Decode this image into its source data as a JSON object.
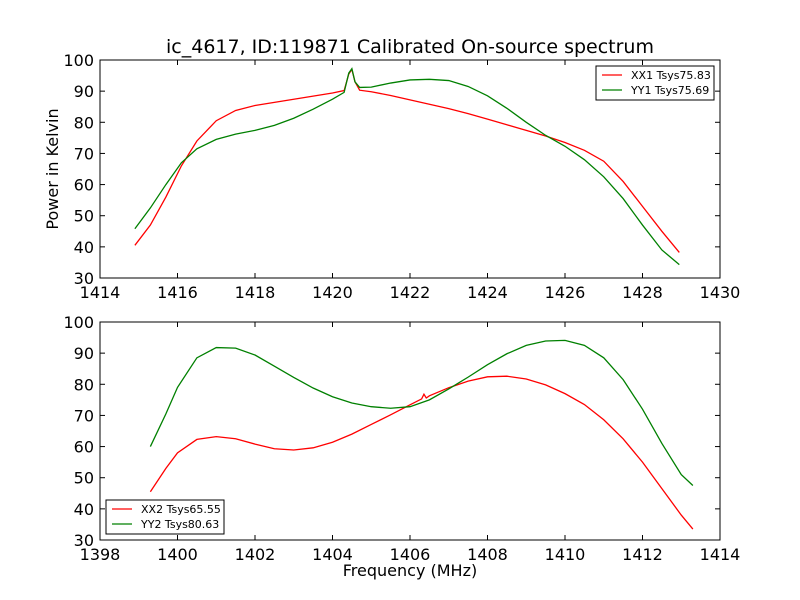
{
  "chart_data": [
    {
      "type": "line",
      "title": "ic_4617, ID:119871 Calibrated On-source spectrum",
      "xlabel": "",
      "ylabel": "Power in Kelvin",
      "xlim": [
        1414,
        1430
      ],
      "ylim": [
        30,
        100
      ],
      "xticks": [
        1414,
        1416,
        1418,
        1420,
        1422,
        1424,
        1426,
        1428,
        1430
      ],
      "yticks": [
        30,
        40,
        50,
        60,
        70,
        80,
        90,
        100
      ],
      "legend_position": "top-right",
      "series": [
        {
          "name": "XX1 Tsys75.83",
          "color": "#ff0000",
          "points": [
            [
              1414.9,
              40.5
            ],
            [
              1415.3,
              47
            ],
            [
              1415.7,
              56
            ],
            [
              1416.1,
              66
            ],
            [
              1416.5,
              74
            ],
            [
              1417.0,
              80.5
            ],
            [
              1417.5,
              83.8
            ],
            [
              1418.0,
              85.4
            ],
            [
              1418.5,
              86.4
            ],
            [
              1419.0,
              87.4
            ],
            [
              1419.5,
              88.4
            ],
            [
              1420.0,
              89.4
            ],
            [
              1420.3,
              90.2
            ],
            [
              1420.42,
              95.5
            ],
            [
              1420.5,
              97
            ],
            [
              1420.58,
              93
            ],
            [
              1420.7,
              90.3
            ],
            [
              1421.0,
              89.8
            ],
            [
              1421.5,
              88.6
            ],
            [
              1422.0,
              87.2
            ],
            [
              1422.5,
              85.8
            ],
            [
              1423.0,
              84.4
            ],
            [
              1423.5,
              82.8
            ],
            [
              1424.0,
              81.0
            ],
            [
              1424.5,
              79.2
            ],
            [
              1425.0,
              77.4
            ],
            [
              1425.5,
              75.6
            ],
            [
              1426.0,
              73.5
            ],
            [
              1426.5,
              71.0
            ],
            [
              1427.0,
              67.5
            ],
            [
              1427.5,
              61
            ],
            [
              1428.0,
              53
            ],
            [
              1428.5,
              45
            ],
            [
              1428.95,
              38.2
            ]
          ]
        },
        {
          "name": "YY1 Tsys75.69",
          "color": "#008000",
          "points": [
            [
              1414.9,
              45.8
            ],
            [
              1415.3,
              52.5
            ],
            [
              1415.7,
              60
            ],
            [
              1416.1,
              67
            ],
            [
              1416.5,
              71.5
            ],
            [
              1417.0,
              74.5
            ],
            [
              1417.5,
              76.2
            ],
            [
              1418.0,
              77.4
            ],
            [
              1418.5,
              79
            ],
            [
              1419.0,
              81.3
            ],
            [
              1419.5,
              84.2
            ],
            [
              1420.0,
              87.4
            ],
            [
              1420.3,
              89.6
            ],
            [
              1420.42,
              95.8
            ],
            [
              1420.5,
              97.2
            ],
            [
              1420.58,
              93
            ],
            [
              1420.7,
              91.2
            ],
            [
              1421.0,
              91.3
            ],
            [
              1421.5,
              92.6
            ],
            [
              1422.0,
              93.6
            ],
            [
              1422.5,
              93.8
            ],
            [
              1423.0,
              93.4
            ],
            [
              1423.5,
              91.5
            ],
            [
              1424.0,
              88.5
            ],
            [
              1424.5,
              84.5
            ],
            [
              1425.0,
              80
            ],
            [
              1425.5,
              75.8
            ],
            [
              1426.0,
              72.3
            ],
            [
              1426.5,
              68
            ],
            [
              1427.0,
              62.5
            ],
            [
              1427.5,
              55.5
            ],
            [
              1428.0,
              47
            ],
            [
              1428.5,
              39
            ],
            [
              1428.95,
              34.3
            ]
          ]
        }
      ]
    },
    {
      "type": "line",
      "title": "",
      "xlabel": "Frequency (MHz)",
      "ylabel": "",
      "xlim": [
        1398,
        1414
      ],
      "ylim": [
        30,
        100
      ],
      "xticks": [
        1398,
        1400,
        1402,
        1404,
        1406,
        1408,
        1410,
        1412,
        1414
      ],
      "yticks": [
        30,
        40,
        50,
        60,
        70,
        80,
        90,
        100
      ],
      "legend_position": "bottom-left",
      "series": [
        {
          "name": "XX2 Tsys65.55",
          "color": "#ff0000",
          "points": [
            [
              1399.3,
              45.5
            ],
            [
              1399.7,
              53
            ],
            [
              1400.0,
              58
            ],
            [
              1400.5,
              62.3
            ],
            [
              1401.0,
              63.2
            ],
            [
              1401.5,
              62.5
            ],
            [
              1402.0,
              60.8
            ],
            [
              1402.5,
              59.3
            ],
            [
              1403.0,
              58.9
            ],
            [
              1403.5,
              59.6
            ],
            [
              1404.0,
              61.4
            ],
            [
              1404.5,
              64
            ],
            [
              1405.0,
              67.1
            ],
            [
              1405.5,
              70.2
            ],
            [
              1406.0,
              73.4
            ],
            [
              1406.3,
              75.3
            ],
            [
              1406.36,
              76.8
            ],
            [
              1406.42,
              75.6
            ],
            [
              1406.5,
              76.3
            ],
            [
              1407.0,
              78.9
            ],
            [
              1407.5,
              81
            ],
            [
              1408.0,
              82.4
            ],
            [
              1408.5,
              82.6
            ],
            [
              1409.0,
              81.7
            ],
            [
              1409.5,
              79.8
            ],
            [
              1410.0,
              77
            ],
            [
              1410.5,
              73.5
            ],
            [
              1411.0,
              68.6
            ],
            [
              1411.5,
              62.5
            ],
            [
              1412.0,
              55
            ],
            [
              1412.5,
              46.5
            ],
            [
              1413.0,
              38
            ],
            [
              1413.3,
              33.5
            ]
          ]
        },
        {
          "name": "YY2 Tsys80.63",
          "color": "#008000",
          "points": [
            [
              1399.3,
              60
            ],
            [
              1399.7,
              70.5
            ],
            [
              1400.0,
              79
            ],
            [
              1400.5,
              88.5
            ],
            [
              1401.0,
              91.8
            ],
            [
              1401.5,
              91.6
            ],
            [
              1402.0,
              89.4
            ],
            [
              1402.5,
              85.8
            ],
            [
              1403.0,
              82.2
            ],
            [
              1403.5,
              78.8
            ],
            [
              1404.0,
              76
            ],
            [
              1404.5,
              74
            ],
            [
              1405.0,
              72.8
            ],
            [
              1405.5,
              72.3
            ],
            [
              1406.0,
              72.8
            ],
            [
              1406.5,
              75
            ],
            [
              1407.0,
              78.5
            ],
            [
              1407.5,
              82.3
            ],
            [
              1408.0,
              86.3
            ],
            [
              1408.5,
              89.8
            ],
            [
              1409.0,
              92.5
            ],
            [
              1409.5,
              93.9
            ],
            [
              1410.0,
              94.1
            ],
            [
              1410.5,
              92.5
            ],
            [
              1411.0,
              88.5
            ],
            [
              1411.5,
              81.5
            ],
            [
              1412.0,
              72
            ],
            [
              1412.5,
              61
            ],
            [
              1413.0,
              51
            ],
            [
              1413.3,
              47.5
            ]
          ]
        }
      ]
    }
  ]
}
